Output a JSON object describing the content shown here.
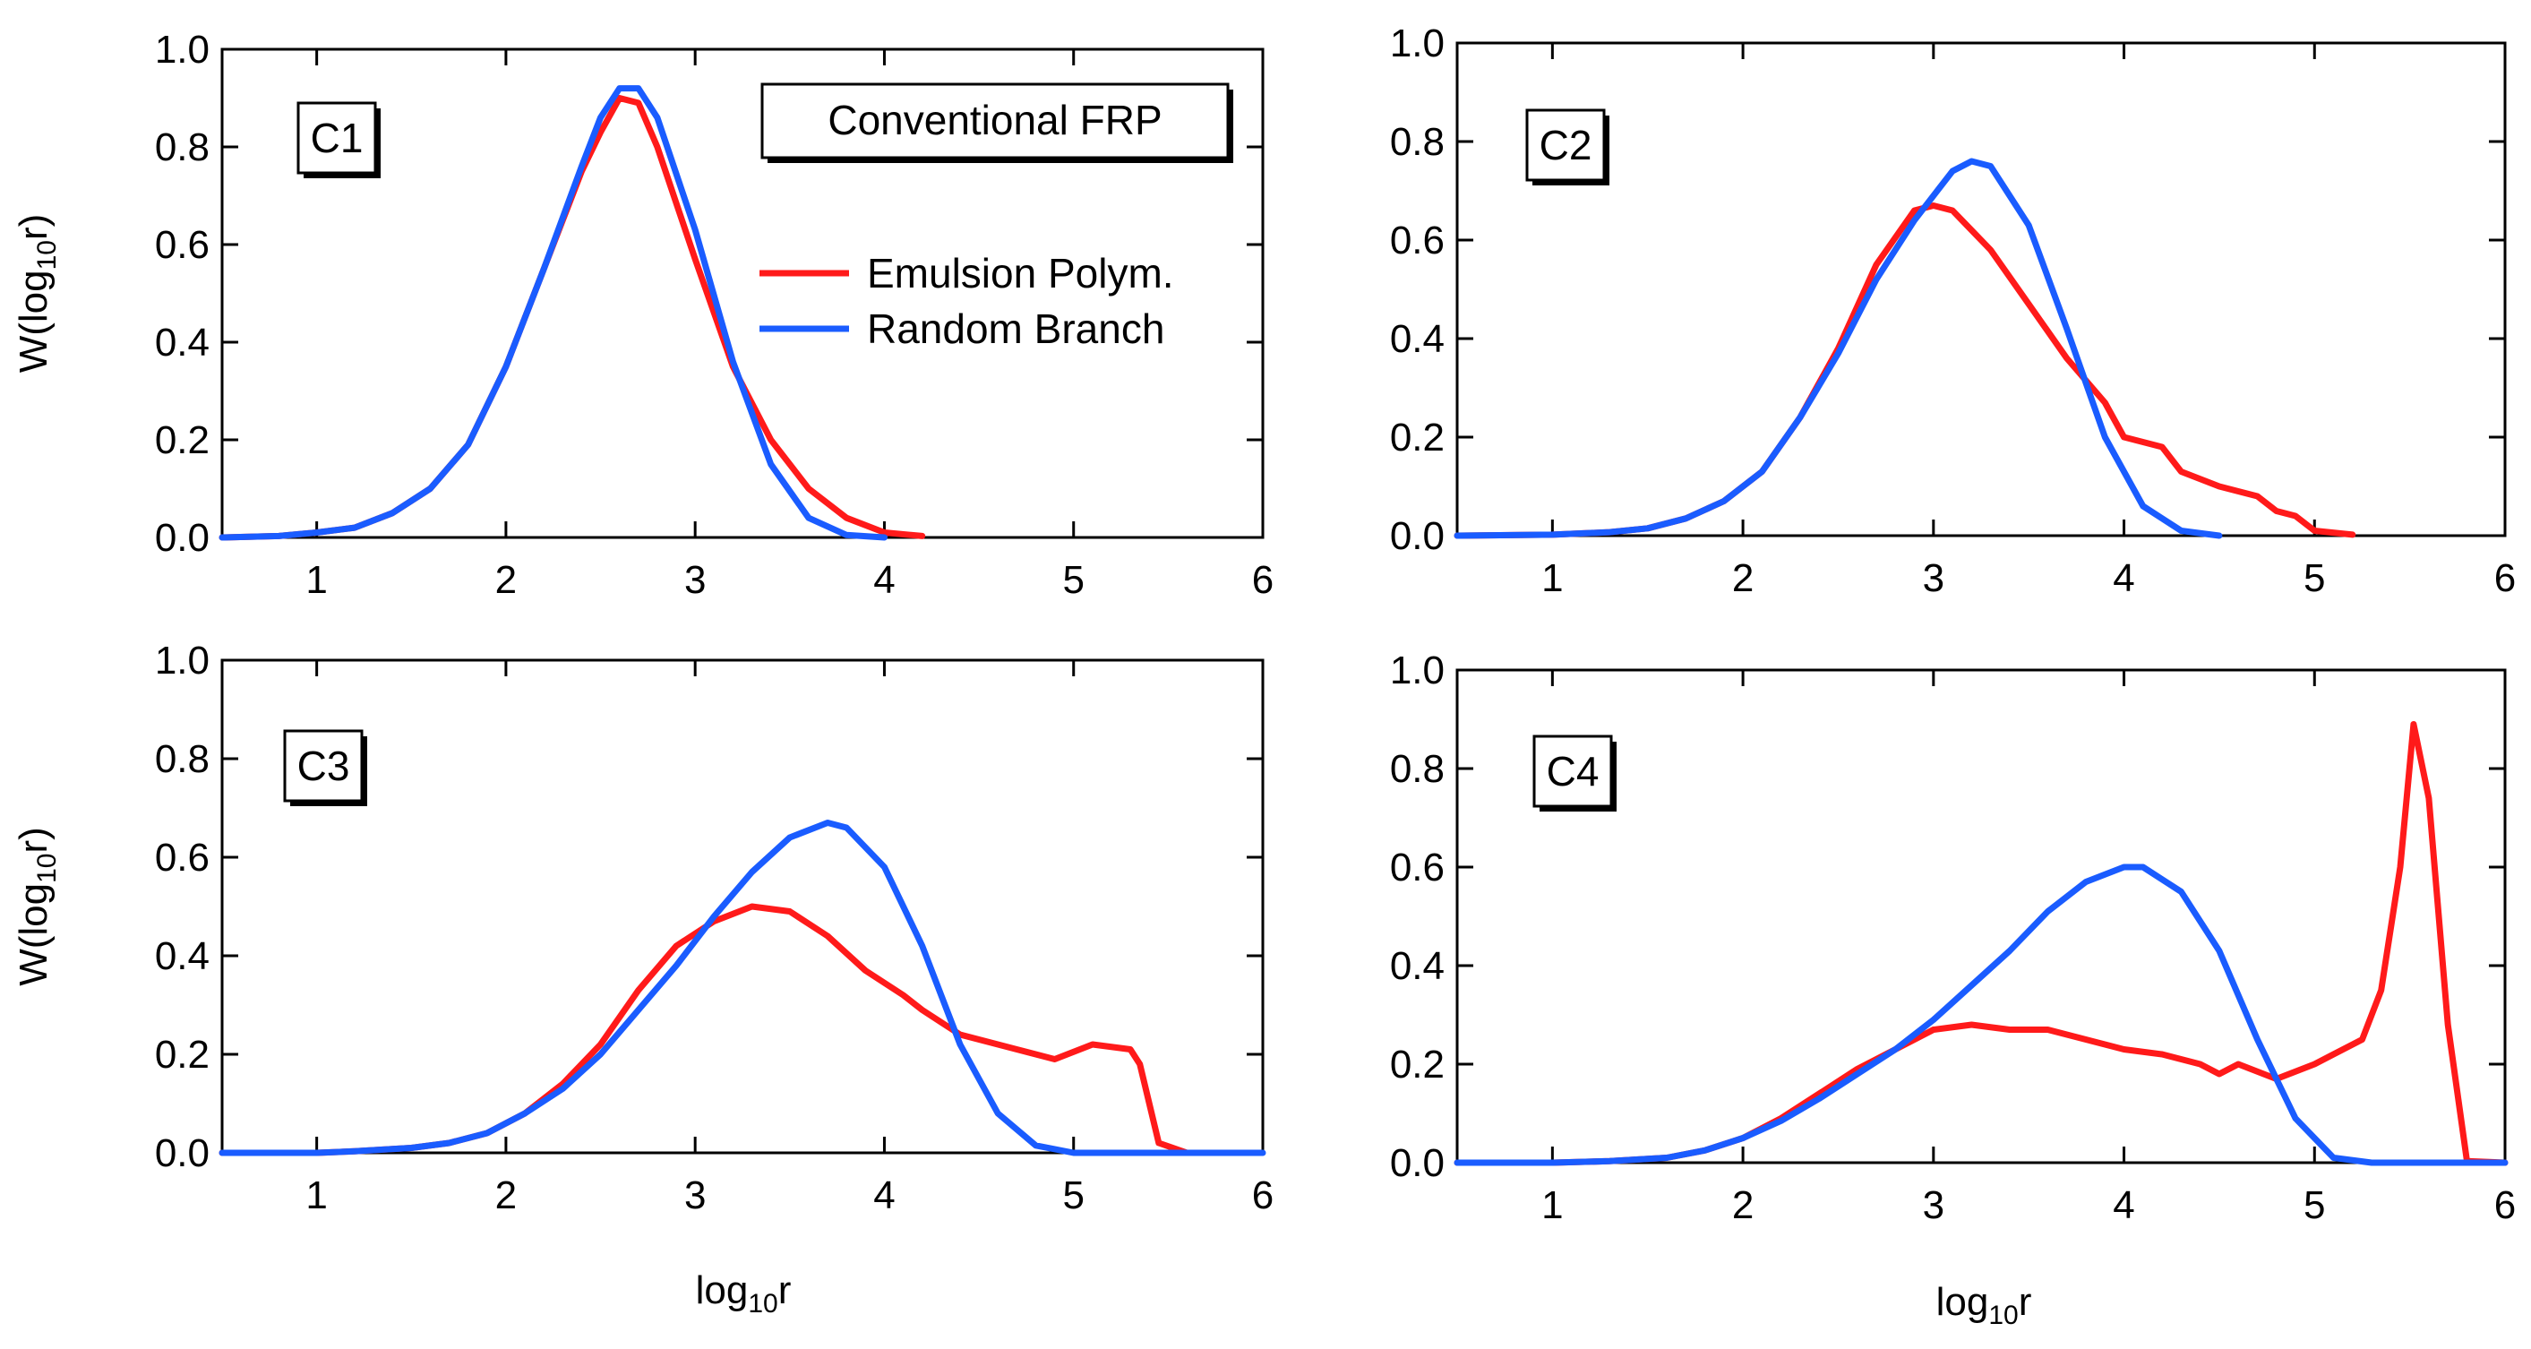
{
  "colors": {
    "emulsion": "#ff1a1a",
    "random": "#1a5cff"
  },
  "figure": {
    "legend_title": "Conventional FRP",
    "legend_items": [
      {
        "name": "Emulsion Polym.",
        "color": "#ff1a1a"
      },
      {
        "name": "Random Branch",
        "color": "#1a5cff"
      }
    ],
    "x_axis_title": {
      "base": "log",
      "sub": "10",
      "tail": "r"
    },
    "y_axis_title": {
      "base": "W(log",
      "sub": "10",
      "tail": "r)"
    }
  },
  "chart_data": [
    {
      "type": "line",
      "panel": "C1",
      "xlim": [
        0.5,
        6
      ],
      "ylim": [
        0,
        1
      ],
      "xticks": [
        "1",
        "2",
        "3",
        "4",
        "5",
        "6"
      ],
      "yticks": [
        "0.0",
        "0.2",
        "0.4",
        "0.6",
        "0.8",
        "1.0"
      ],
      "series": [
        {
          "name": "Emulsion Polym.",
          "color": "#ff1a1a",
          "points": [
            [
              0.5,
              0
            ],
            [
              0.8,
              0.003
            ],
            [
              1,
              0.01
            ],
            [
              1.2,
              0.02
            ],
            [
              1.4,
              0.05
            ],
            [
              1.6,
              0.1
            ],
            [
              1.8,
              0.19
            ],
            [
              2,
              0.35
            ],
            [
              2.2,
              0.55
            ],
            [
              2.4,
              0.75
            ],
            [
              2.5,
              0.83
            ],
            [
              2.6,
              0.9
            ],
            [
              2.7,
              0.89
            ],
            [
              2.8,
              0.8
            ],
            [
              3,
              0.57
            ],
            [
              3.2,
              0.35
            ],
            [
              3.4,
              0.2
            ],
            [
              3.6,
              0.1
            ],
            [
              3.8,
              0.04
            ],
            [
              4,
              0.01
            ],
            [
              4.2,
              0.003
            ]
          ]
        },
        {
          "name": "Random Branch",
          "color": "#1a5cff",
          "points": [
            [
              0.5,
              0
            ],
            [
              0.8,
              0.003
            ],
            [
              1,
              0.01
            ],
            [
              1.2,
              0.02
            ],
            [
              1.4,
              0.05
            ],
            [
              1.6,
              0.1
            ],
            [
              1.8,
              0.19
            ],
            [
              2,
              0.35
            ],
            [
              2.2,
              0.55
            ],
            [
              2.4,
              0.76
            ],
            [
              2.5,
              0.86
            ],
            [
              2.6,
              0.92
            ],
            [
              2.7,
              0.92
            ],
            [
              2.8,
              0.86
            ],
            [
              3,
              0.63
            ],
            [
              3.2,
              0.36
            ],
            [
              3.4,
              0.15
            ],
            [
              3.6,
              0.04
            ],
            [
              3.8,
              0.005
            ],
            [
              4,
              0
            ]
          ]
        }
      ]
    },
    {
      "type": "line",
      "panel": "C2",
      "xlim": [
        0.5,
        6
      ],
      "ylim": [
        0,
        1
      ],
      "xticks": [
        "1",
        "2",
        "3",
        "4",
        "5",
        "6"
      ],
      "yticks": [
        "0.0",
        "0.2",
        "0.4",
        "0.6",
        "0.8",
        "1.0"
      ],
      "series": [
        {
          "name": "Emulsion Polym.",
          "color": "#ff1a1a",
          "points": [
            [
              0.5,
              0
            ],
            [
              1,
              0.002
            ],
            [
              1.3,
              0.007
            ],
            [
              1.5,
              0.015
            ],
            [
              1.7,
              0.035
            ],
            [
              1.9,
              0.07
            ],
            [
              2.1,
              0.13
            ],
            [
              2.3,
              0.24
            ],
            [
              2.5,
              0.38
            ],
            [
              2.7,
              0.55
            ],
            [
              2.9,
              0.66
            ],
            [
              3,
              0.67
            ],
            [
              3.1,
              0.66
            ],
            [
              3.3,
              0.58
            ],
            [
              3.5,
              0.47
            ],
            [
              3.7,
              0.36
            ],
            [
              3.9,
              0.27
            ],
            [
              4,
              0.2
            ],
            [
              4.2,
              0.18
            ],
            [
              4.3,
              0.13
            ],
            [
              4.5,
              0.1
            ],
            [
              4.7,
              0.08
            ],
            [
              4.8,
              0.05
            ],
            [
              4.9,
              0.04
            ],
            [
              5,
              0.01
            ],
            [
              5.2,
              0.002
            ]
          ]
        },
        {
          "name": "Random Branch",
          "color": "#1a5cff",
          "points": [
            [
              0.5,
              0
            ],
            [
              1,
              0.002
            ],
            [
              1.3,
              0.007
            ],
            [
              1.5,
              0.015
            ],
            [
              1.7,
              0.035
            ],
            [
              1.9,
              0.07
            ],
            [
              2.1,
              0.13
            ],
            [
              2.3,
              0.24
            ],
            [
              2.5,
              0.37
            ],
            [
              2.7,
              0.52
            ],
            [
              2.9,
              0.64
            ],
            [
              3,
              0.69
            ],
            [
              3.1,
              0.74
            ],
            [
              3.2,
              0.76
            ],
            [
              3.3,
              0.75
            ],
            [
              3.5,
              0.63
            ],
            [
              3.7,
              0.42
            ],
            [
              3.9,
              0.2
            ],
            [
              4.1,
              0.06
            ],
            [
              4.3,
              0.01
            ],
            [
              4.5,
              0
            ]
          ]
        }
      ]
    },
    {
      "type": "line",
      "panel": "C3",
      "xlim": [
        0.5,
        6
      ],
      "ylim": [
        0,
        1
      ],
      "xticks": [
        "1",
        "2",
        "3",
        "4",
        "5",
        "6"
      ],
      "yticks": [
        "0.0",
        "0.2",
        "0.4",
        "0.6",
        "0.8",
        "1.0"
      ],
      "series": [
        {
          "name": "Emulsion Polym.",
          "color": "#ff1a1a",
          "points": [
            [
              0.5,
              0
            ],
            [
              1,
              0
            ],
            [
              1.2,
              0.003
            ],
            [
              1.5,
              0.01
            ],
            [
              1.7,
              0.02
            ],
            [
              1.9,
              0.04
            ],
            [
              2.1,
              0.08
            ],
            [
              2.3,
              0.14
            ],
            [
              2.5,
              0.22
            ],
            [
              2.7,
              0.33
            ],
            [
              2.9,
              0.42
            ],
            [
              3.1,
              0.47
            ],
            [
              3.3,
              0.5
            ],
            [
              3.5,
              0.49
            ],
            [
              3.7,
              0.44
            ],
            [
              3.9,
              0.37
            ],
            [
              4.1,
              0.32
            ],
            [
              4.2,
              0.29
            ],
            [
              4.4,
              0.24
            ],
            [
              4.5,
              0.23
            ],
            [
              4.7,
              0.21
            ],
            [
              4.9,
              0.19
            ],
            [
              5.1,
              0.22
            ],
            [
              5.3,
              0.21
            ],
            [
              5.35,
              0.18
            ],
            [
              5.45,
              0.02
            ],
            [
              5.6,
              0
            ]
          ]
        },
        {
          "name": "Random Branch",
          "color": "#1a5cff",
          "points": [
            [
              0.5,
              0
            ],
            [
              1,
              0
            ],
            [
              1.2,
              0.003
            ],
            [
              1.5,
              0.01
            ],
            [
              1.7,
              0.02
            ],
            [
              1.9,
              0.04
            ],
            [
              2.1,
              0.08
            ],
            [
              2.3,
              0.13
            ],
            [
              2.5,
              0.2
            ],
            [
              2.7,
              0.29
            ],
            [
              2.9,
              0.38
            ],
            [
              3.1,
              0.48
            ],
            [
              3.3,
              0.57
            ],
            [
              3.5,
              0.64
            ],
            [
              3.7,
              0.67
            ],
            [
              3.8,
              0.66
            ],
            [
              4,
              0.58
            ],
            [
              4.2,
              0.42
            ],
            [
              4.4,
              0.22
            ],
            [
              4.6,
              0.08
            ],
            [
              4.8,
              0.015
            ],
            [
              5,
              0
            ],
            [
              6,
              0
            ]
          ]
        }
      ]
    },
    {
      "type": "line",
      "panel": "C4",
      "xlim": [
        0.5,
        6
      ],
      "ylim": [
        0,
        1
      ],
      "xticks": [
        "1",
        "2",
        "3",
        "4",
        "5",
        "6"
      ],
      "yticks": [
        "0.0",
        "0.2",
        "0.4",
        "0.6",
        "0.8",
        "1.0"
      ],
      "series": [
        {
          "name": "Emulsion Polym.",
          "color": "#ff1a1a",
          "points": [
            [
              0.5,
              0
            ],
            [
              1,
              0
            ],
            [
              1.3,
              0.003
            ],
            [
              1.6,
              0.01
            ],
            [
              1.8,
              0.025
            ],
            [
              2,
              0.05
            ],
            [
              2.2,
              0.09
            ],
            [
              2.4,
              0.14
            ],
            [
              2.6,
              0.19
            ],
            [
              2.8,
              0.23
            ],
            [
              3,
              0.27
            ],
            [
              3.2,
              0.28
            ],
            [
              3.4,
              0.27
            ],
            [
              3.6,
              0.27
            ],
            [
              3.8,
              0.25
            ],
            [
              4,
              0.23
            ],
            [
              4.2,
              0.22
            ],
            [
              4.4,
              0.2
            ],
            [
              4.5,
              0.18
            ],
            [
              4.6,
              0.2
            ],
            [
              4.8,
              0.17
            ],
            [
              5,
              0.2
            ],
            [
              5.1,
              0.22
            ],
            [
              5.25,
              0.25
            ],
            [
              5.35,
              0.35
            ],
            [
              5.45,
              0.6
            ],
            [
              5.52,
              0.89
            ],
            [
              5.6,
              0.74
            ],
            [
              5.7,
              0.28
            ],
            [
              5.8,
              0.003
            ],
            [
              6,
              0
            ]
          ]
        },
        {
          "name": "Random Branch",
          "color": "#1a5cff",
          "points": [
            [
              0.5,
              0
            ],
            [
              1,
              0
            ],
            [
              1.3,
              0.003
            ],
            [
              1.6,
              0.01
            ],
            [
              1.8,
              0.025
            ],
            [
              2,
              0.05
            ],
            [
              2.2,
              0.085
            ],
            [
              2.4,
              0.13
            ],
            [
              2.6,
              0.18
            ],
            [
              2.8,
              0.23
            ],
            [
              3,
              0.29
            ],
            [
              3.2,
              0.36
            ],
            [
              3.4,
              0.43
            ],
            [
              3.6,
              0.51
            ],
            [
              3.8,
              0.57
            ],
            [
              4,
              0.6
            ],
            [
              4.1,
              0.6
            ],
            [
              4.3,
              0.55
            ],
            [
              4.5,
              0.43
            ],
            [
              4.7,
              0.25
            ],
            [
              4.9,
              0.09
            ],
            [
              5.1,
              0.01
            ],
            [
              5.3,
              0
            ],
            [
              6,
              0
            ]
          ]
        }
      ]
    }
  ]
}
